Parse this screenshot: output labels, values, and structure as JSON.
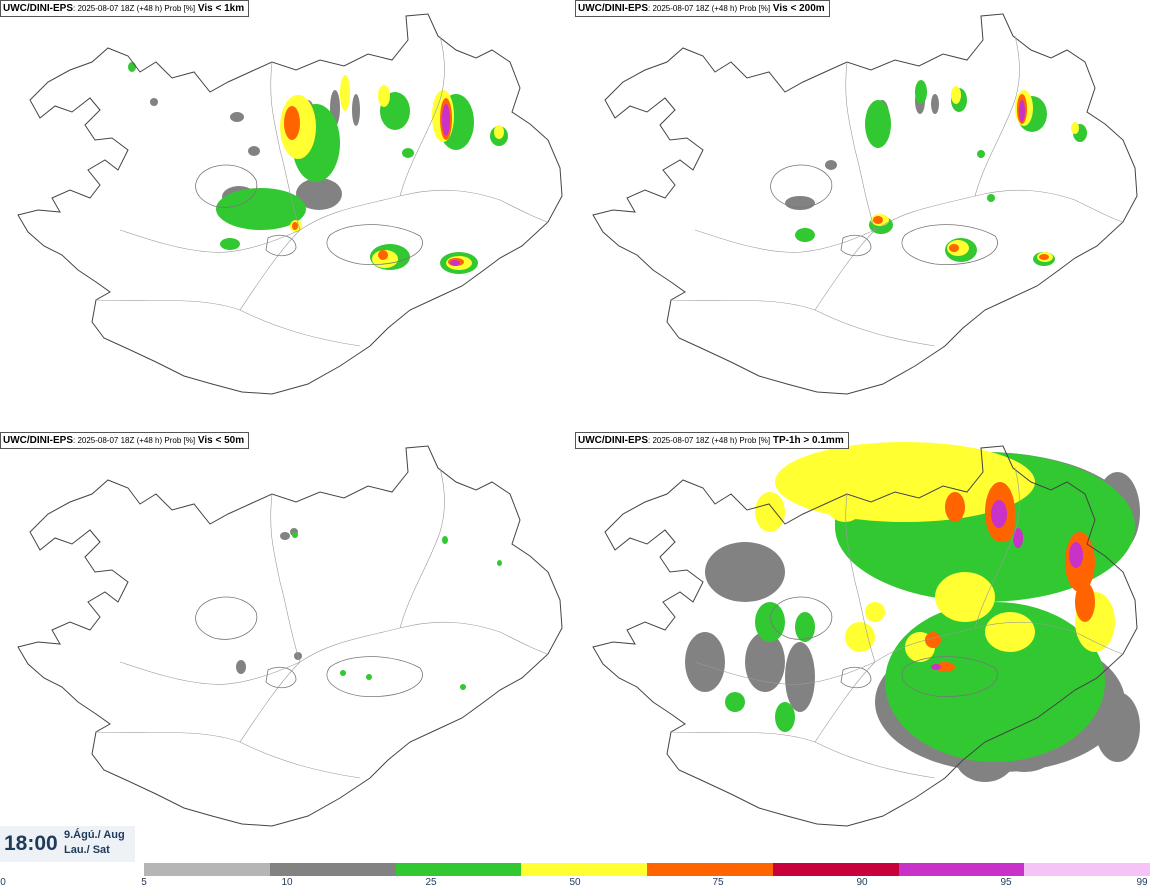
{
  "panels": [
    {
      "id": "vis1km",
      "model": "UWC/DINI-EPS",
      "meta": ": 2025-08-07 18Z (+48 h) Prob [%]",
      "param": "Vis < 1km"
    },
    {
      "id": "vis200m",
      "model": "UWC/DINI-EPS",
      "meta": ": 2025-08-07 18Z (+48 h) Prob [%]",
      "param": "Vis < 200m"
    },
    {
      "id": "vis50m",
      "model": "UWC/DINI-EPS",
      "meta": ": 2025-08-07 18Z (+48 h) Prob [%]",
      "param": "Vis < 50m"
    },
    {
      "id": "tp1h",
      "model": "UWC/DINI-EPS",
      "meta": ": 2025-08-07 18Z (+48 h) Prob [%]",
      "param": "TP-1h > 0.1mm"
    }
  ],
  "valid_time": {
    "time": "18:00",
    "day_line1": "9.Ágú./ Aug",
    "day_line2": "Lau./ Sat"
  },
  "legend": {
    "ticks": [
      "0",
      "5",
      "10",
      "25",
      "50",
      "75",
      "90",
      "95",
      "99"
    ],
    "colors": [
      "#b5b5b5",
      "#828282",
      "#32c832",
      "#ffff32",
      "#ff6400",
      "#c8003c",
      "#c832c8",
      "#f5c3f5"
    ]
  }
}
